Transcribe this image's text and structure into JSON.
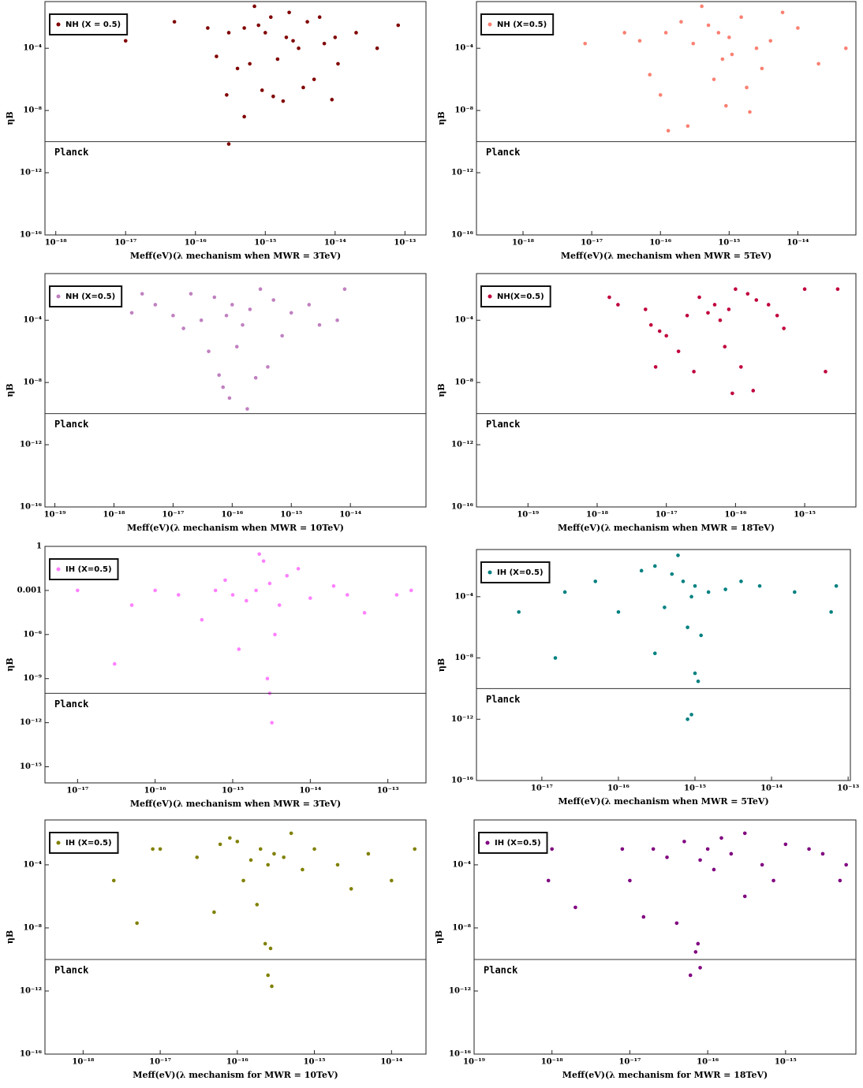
{
  "chart_data": [
    {
      "type": "scatter",
      "x_label": "Meff(eV)(λ mechanism when MWR = 3TeV)",
      "y_label": "ηB",
      "xscale": "log",
      "yscale": "log",
      "legend": "upper left",
      "xlim": [
        7e-19,
        2e-13
      ],
      "ylim": [
        1e-16,
        0.1
      ],
      "xticks": [
        {
          "value": 1e-18,
          "label": "10⁻¹⁸"
        },
        {
          "value": 1e-17,
          "label": "10⁻¹⁷"
        },
        {
          "value": 1e-16,
          "label": "10⁻¹⁶"
        },
        {
          "value": 1e-15,
          "label": "10⁻¹⁵"
        },
        {
          "value": 1e-14,
          "label": "10⁻¹⁴"
        },
        {
          "value": 1e-13,
          "label": "10⁻¹³"
        }
      ],
      "yticks": [
        {
          "value": 1e-16,
          "label": "10⁻¹⁶"
        },
        {
          "value": 1e-12,
          "label": "10⁻¹²"
        },
        {
          "value": 1e-08,
          "label": "10⁻⁸"
        },
        {
          "value": 0.0001,
          "label": "10⁻⁴"
        }
      ],
      "hline": {
        "value": 1e-10,
        "label": "Planck"
      },
      "series": [
        {
          "name": "NH (X = 0.5)",
          "color": "#800000",
          "x": [
            1e-15,
            2e-15,
            5e-16,
            3e-15,
            8e-16,
            1.5e-15,
            4e-15,
            6e-16,
            2.5e-15,
            1.2e-15,
            7e-15,
            3e-16,
            1e-14,
            2e-16,
            5e-15,
            9e-16,
            1.8e-15,
            3.5e-15,
            1.1e-14,
            4e-16,
            2e-14,
            1.5e-16,
            6e-15,
            2.2e-15,
            7e-16,
            1e-17,
            3e-18,
            5e-17,
            4e-14,
            8e-14,
            2.8e-16,
            5e-16,
            3e-16,
            1.3e-15,
            9e-15
          ],
          "values": [
            0.001,
            0.0005,
            0.002,
            0.0001,
            0.003,
            2e-05,
            0.005,
            1e-05,
            0.0003,
            0.01,
            0.0002,
            0.001,
            0.0005,
            3e-05,
            1e-06,
            2e-07,
            4e-08,
            3e-07,
            1e-05,
            5e-06,
            0.001,
            0.002,
            0.01,
            0.02,
            0.05,
            0.0003,
            0.001,
            0.005,
            0.0001,
            0.003,
            1e-07,
            4e-09,
            7e-11,
            8e-08,
            5e-08
          ]
        }
      ]
    },
    {
      "type": "scatter",
      "x_label": "Meff(eV)(λ mechanism when MWR = 5TeV)",
      "y_label": "ηB",
      "xscale": "log",
      "yscale": "log",
      "legend": "upper left",
      "xlim": [
        2.1e-19,
        7e-14
      ],
      "ylim": [
        1e-16,
        0.1
      ],
      "xticks": [
        {
          "value": 1e-18,
          "label": "10⁻¹⁸"
        },
        {
          "value": 1e-17,
          "label": "10⁻¹⁷"
        },
        {
          "value": 1e-16,
          "label": "10⁻¹⁶"
        },
        {
          "value": 1e-15,
          "label": "10⁻¹⁵"
        },
        {
          "value": 1e-14,
          "label": "10⁻¹⁴"
        }
      ],
      "yticks": [
        {
          "value": 1e-16,
          "label": "10⁻¹⁶"
        },
        {
          "value": 1e-12,
          "label": "10⁻¹²"
        },
        {
          "value": 1e-08,
          "label": "10⁻⁸"
        },
        {
          "value": 0.0001,
          "label": "10⁻⁴"
        }
      ],
      "hline": {
        "value": 1e-10,
        "label": "Planck"
      },
      "series": [
        {
          "name": "NH (X=0.5)",
          "color": "#fa8072",
          "x": [
            7e-16,
            5e-16,
            1e-15,
            3e-16,
            1.5e-15,
            2e-16,
            2.5e-15,
            8e-16,
            4e-15,
            1.2e-16,
            6e-16,
            3e-15,
            1e-14,
            5e-17,
            2e-14,
            1e-16,
            9e-16,
            1.8e-15,
            4e-16,
            6e-15,
            3e-17,
            8e-18,
            2.5e-16,
            1.1e-15,
            7e-17,
            5e-14,
            1.3e-16,
            2e-15
          ],
          "values": [
            0.001,
            0.003,
            0.0005,
            0.0002,
            0.01,
            0.005,
            0.0001,
            2e-05,
            0.0003,
            0.001,
            1e-06,
            5e-06,
            0.002,
            0.0003,
            1e-05,
            1e-07,
            2e-08,
            3e-07,
            0.05,
            0.02,
            0.001,
            0.0002,
            1e-09,
            4e-05,
            2e-06,
            0.0001,
            5e-10,
            8e-09
          ]
        }
      ]
    },
    {
      "type": "scatter",
      "x_label": "Meff(eV)(λ mechanism when MWR = 10TeV)",
      "y_label": "ηB",
      "xscale": "log",
      "yscale": "log",
      "legend": "upper left",
      "xlim": [
        6.8e-20,
        1.9e-13
      ],
      "ylim": [
        1e-16,
        0.1
      ],
      "xticks": [
        {
          "value": 1e-19,
          "label": "10⁻¹⁹"
        },
        {
          "value": 1e-18,
          "label": "10⁻¹⁸"
        },
        {
          "value": 1e-17,
          "label": "10⁻¹⁷"
        },
        {
          "value": 1e-16,
          "label": "10⁻¹⁶"
        },
        {
          "value": 1e-15,
          "label": "10⁻¹⁵"
        },
        {
          "value": 1e-14,
          "label": "10⁻¹⁴"
        }
      ],
      "yticks": [
        {
          "value": 1e-16,
          "label": "10⁻¹⁶"
        },
        {
          "value": 1e-12,
          "label": "10⁻¹²"
        },
        {
          "value": 1e-08,
          "label": "10⁻⁸"
        },
        {
          "value": 0.0001,
          "label": "10⁻⁴"
        }
      ],
      "hline": {
        "value": 1e-10,
        "label": "Planck"
      },
      "series": [
        {
          "name": "NH (X=0.5)",
          "color": "#c080c0",
          "x": [
            1e-16,
            5e-17,
            2e-16,
            3e-16,
            8e-17,
            1.5e-16,
            5e-16,
            3e-17,
            1e-15,
            2e-17,
            7e-16,
            1.2e-16,
            4e-16,
            6e-17,
            2e-15,
            1e-17,
            5e-18,
            2e-18,
            3e-15,
            6e-15,
            9e-17,
            2.5e-16,
            4e-17,
            1.5e-17,
            3e-18,
            8e-15,
            1.8e-16,
            7e-17
          ],
          "values": [
            0.001,
            0.003,
            0.0005,
            0.01,
            0.0002,
            5e-05,
            0.002,
            0.0001,
            0.0003,
            0.005,
            1e-05,
            2e-06,
            1e-07,
            3e-08,
            0.001,
            0.0002,
            0.001,
            0.0003,
            5e-05,
            0.0001,
            1e-09,
            2e-08,
            1e-06,
            3e-05,
            0.005,
            0.01,
            2e-10,
            5e-09
          ]
        }
      ]
    },
    {
      "type": "scatter",
      "x_label": "Meff(eV)(λ mechanism when MWR = 18TeV)",
      "y_label": "ηB",
      "xscale": "log",
      "yscale": "log",
      "legend": "upper left",
      "xlim": [
        1.8e-20,
        5.5e-15
      ],
      "ylim": [
        1e-16,
        0.1
      ],
      "xticks": [
        {
          "value": 1e-19,
          "label": "10⁻¹⁹"
        },
        {
          "value": 1e-18,
          "label": "10⁻¹⁸"
        },
        {
          "value": 1e-17,
          "label": "10⁻¹⁷"
        },
        {
          "value": 1e-16,
          "label": "10⁻¹⁶"
        },
        {
          "value": 1e-15,
          "label": "10⁻¹⁵"
        }
      ],
      "yticks": [
        {
          "value": 1e-16,
          "label": "10⁻¹⁶"
        },
        {
          "value": 1e-12,
          "label": "10⁻¹²"
        },
        {
          "value": 1e-08,
          "label": "10⁻⁸"
        },
        {
          "value": 0.0001,
          "label": "10⁻⁴"
        }
      ],
      "hline": {
        "value": 1e-10,
        "label": "Planck"
      },
      "series": [
        {
          "name": "NH(X=0.5)",
          "color": "#c0003c",
          "x": [
            5e-17,
            3e-17,
            8e-17,
            1e-16,
            2e-17,
            1.5e-16,
            6e-17,
            4e-17,
            2e-16,
            1e-17,
            3e-16,
            7e-17,
            5e-18,
            5e-16,
            1.2e-16,
            2.5e-17,
            9e-17,
            1e-15,
            2e-18,
            1.5e-17,
            4e-16,
            6e-18,
            3e-15,
            7e-18,
            1.8e-16,
            1.5e-18,
            2e-15,
            8e-18
          ],
          "values": [
            0.001,
            0.003,
            0.0005,
            0.01,
            0.0002,
            0.005,
            0.0001,
            0.0003,
            0.002,
            1e-05,
            0.001,
            2e-06,
            0.0005,
            3e-05,
            1e-07,
            5e-08,
            2e-09,
            0.01,
            0.001,
            1e-06,
            0.0002,
            5e-05,
            0.01,
            1e-07,
            3e-09,
            0.003,
            5e-08,
            2e-05
          ]
        }
      ]
    },
    {
      "type": "scatter",
      "x_label": "Meff(eV)(λ mechanism when MWR = 3TeV)",
      "y_label": "ηB",
      "xscale": "log",
      "yscale": "log",
      "legend": "upper left",
      "xlim": [
        3.8e-18,
        3.1e-13
      ],
      "ylim": [
        8e-17,
        1
      ],
      "xticks": [
        {
          "value": 1e-17,
          "label": "10⁻¹⁷"
        },
        {
          "value": 1e-16,
          "label": "10⁻¹⁶"
        },
        {
          "value": 1e-15,
          "label": "10⁻¹⁵"
        },
        {
          "value": 1e-14,
          "label": "10⁻¹⁴"
        },
        {
          "value": 1e-13,
          "label": "10⁻¹³"
        }
      ],
      "yticks": [
        {
          "value": 1e-15,
          "label": "10⁻¹⁵"
        },
        {
          "value": 1e-12,
          "label": "10⁻¹²"
        },
        {
          "value": 1e-09,
          "label": "10⁻⁹"
        },
        {
          "value": 1e-06,
          "label": "10⁻⁶"
        },
        0.001,
        1
      ],
      "hline": {
        "value": 1e-10,
        "label": "Planck"
      },
      "series": [
        {
          "name": "IH (X=0.5)",
          "color": "#ff80ff",
          "x": [
            2e-15,
            3e-15,
            1e-15,
            5e-15,
            1.5e-15,
            8e-16,
            4e-15,
            7e-15,
            6e-16,
            2.5e-15,
            1e-14,
            4e-16,
            2e-14,
            2e-16,
            3.5e-15,
            1e-16,
            5e-17,
            3e-14,
            2.8e-15,
            3e-15,
            3.2e-15,
            1e-17,
            1.3e-13,
            2e-13,
            3e-17,
            5e-14,
            1.2e-15,
            2.2e-15
          ],
          "values": [
            0.001,
            0.003,
            0.0005,
            0.01,
            0.0002,
            0.005,
            0.0001,
            0.03,
            0.001,
            0.1,
            0.0003,
            1e-05,
            0.002,
            0.0005,
            1e-06,
            0.001,
            0.0001,
            0.0005,
            1e-09,
            1e-10,
            1e-12,
            0.001,
            0.0005,
            0.001,
            1e-08,
            3e-05,
            1e-07,
            0.3
          ]
        }
      ]
    },
    {
      "type": "scatter",
      "x_label": "Meff(eV)(λ mechanism when MWR = 5TeV)",
      "y_label": "ηB",
      "xscale": "log",
      "yscale": "log",
      "legend": "upper left",
      "xlim": [
        1.4e-18,
        1.07e-13
      ],
      "ylim": [
        1e-16,
        0.12
      ],
      "xticks": [
        {
          "value": 1e-17,
          "label": "10⁻¹⁷"
        },
        {
          "value": 1e-16,
          "label": "10⁻¹⁶"
        },
        {
          "value": 1e-15,
          "label": "10⁻¹⁵"
        },
        {
          "value": 1e-14,
          "label": "10⁻¹⁴"
        },
        {
          "value": 1e-13,
          "label": "10⁻¹³"
        }
      ],
      "yticks": [
        {
          "value": 1e-16,
          "label": "10⁻¹⁶"
        },
        {
          "value": 1e-12,
          "label": "10⁻¹²"
        },
        {
          "value": 1e-08,
          "label": "10⁻⁸"
        },
        {
          "value": 0.0001,
          "label": "10⁻⁴"
        }
      ],
      "hline": {
        "value": 1e-10,
        "label": "Planck"
      },
      "series": [
        {
          "name": "IH (X=0.5)",
          "color": "#008080",
          "x": [
            7e-16,
            5e-16,
            1e-15,
            3e-16,
            1.5e-15,
            2e-16,
            9e-16,
            2.5e-15,
            4e-16,
            6e-16,
            4e-15,
            1e-16,
            8e-16,
            1.2e-15,
            7e-15,
            5e-17,
            2e-14,
            1e-15,
            1.1e-15,
            8e-16,
            9e-16,
            2e-17,
            4e-18,
            5e-18,
            6e-14,
            7e-14,
            1.5e-17,
            3e-16
          ],
          "values": [
            0.001,
            0.003,
            0.0005,
            0.01,
            0.0002,
            0.005,
            0.0001,
            0.0003,
            2e-05,
            0.05,
            0.001,
            1e-05,
            1e-06,
            3e-07,
            0.0005,
            0.001,
            0.0002,
            1e-09,
            3e-10,
            1e-12,
            2e-12,
            0.0002,
            0.001,
            1e-05,
            1e-05,
            0.0005,
            1e-08,
            2e-08
          ]
        }
      ]
    },
    {
      "type": "scatter",
      "x_label": "Meff(eV)(λ mechanism for MWR = 10TeV)",
      "y_label": "ηB",
      "xscale": "log",
      "yscale": "log",
      "legend": "upper left",
      "xlim": [
        3.2e-19,
        2.8e-14
      ],
      "ylim": [
        1e-16,
        0.07
      ],
      "xticks": [
        {
          "value": 1e-18,
          "label": "10⁻¹⁸"
        },
        {
          "value": 1e-17,
          "label": "10⁻¹⁷"
        },
        {
          "value": 1e-16,
          "label": "10⁻¹⁶"
        },
        {
          "value": 1e-15,
          "label": "10⁻¹⁵"
        },
        {
          "value": 1e-14,
          "label": "10⁻¹⁴"
        }
      ],
      "yticks": [
        {
          "value": 1e-16,
          "label": "10⁻¹⁶"
        },
        {
          "value": 1e-12,
          "label": "10⁻¹²"
        },
        {
          "value": 1e-08,
          "label": "10⁻⁸"
        },
        {
          "value": 0.0001,
          "label": "10⁻⁴"
        }
      ],
      "hline": {
        "value": 1e-10,
        "label": "Planck"
      },
      "series": [
        {
          "name": "IH (X=0.5)",
          "color": "#808000",
          "x": [
            2e-16,
            1e-16,
            3e-16,
            5e-16,
            1.5e-16,
            8e-17,
            2.5e-16,
            4e-16,
            6e-17,
            1e-15,
            1.2e-16,
            7e-16,
            3e-17,
            2e-15,
            1e-17,
            2.7e-16,
            2.5e-16,
            2.8e-16,
            2.3e-16,
            5e-15,
            1e-14,
            2e-14,
            5e-18,
            2.5e-18,
            8e-18,
            5e-17,
            3e-15,
            1.8e-16
          ],
          "values": [
            0.001,
            0.003,
            0.0005,
            0.01,
            0.0002,
            0.005,
            0.0001,
            0.0003,
            0.002,
            0.001,
            1e-05,
            5e-05,
            0.0003,
            0.0001,
            0.001,
            5e-10,
            1e-11,
            2e-12,
            1e-09,
            0.0005,
            1e-05,
            0.001,
            2e-08,
            1e-05,
            0.001,
            1e-07,
            3e-06,
            3e-07
          ]
        }
      ]
    },
    {
      "type": "scatter",
      "x_label": "Meff(eV)(λ mechanism for MWR = 18TeV)",
      "y_label": "ηB",
      "xscale": "log",
      "yscale": "log",
      "legend": "upper left",
      "xlim": [
        1e-19,
        8e-15
      ],
      "ylim": [
        1e-16,
        0.07
      ],
      "xticks": [
        {
          "value": 1e-19,
          "label": "10⁻¹⁹"
        },
        {
          "value": 1e-18,
          "label": "10⁻¹⁸"
        },
        {
          "value": 1e-17,
          "label": "10⁻¹⁷"
        },
        {
          "value": 1e-16,
          "label": "10⁻¹⁶"
        },
        {
          "value": 1e-15,
          "label": "10⁻¹⁵"
        }
      ],
      "yticks": [
        {
          "value": 1e-16,
          "label": "10⁻¹⁶"
        },
        {
          "value": 1e-12,
          "label": "10⁻¹²"
        },
        {
          "value": 1e-08,
          "label": "10⁻⁸"
        },
        {
          "value": 0.0001,
          "label": "10⁻⁴"
        }
      ],
      "hline": {
        "value": 1e-10,
        "label": "Planck"
      },
      "series": [
        {
          "name": "IH (X=0.5)",
          "color": "#800080",
          "x": [
            1e-16,
            5e-17,
            2e-16,
            3e-16,
            8e-17,
            1.5e-16,
            5e-16,
            3e-17,
            1e-15,
            2e-17,
            7e-16,
            1.2e-16,
            7.5e-17,
            7e-17,
            8e-17,
            6e-17,
            8e-18,
            1e-18,
            1e-17,
            3e-15,
            5e-15,
            6e-15,
            2e-18,
            3e-16,
            1.5e-17,
            4e-17,
            2e-15,
            9e-19
          ],
          "values": [
            0.001,
            0.003,
            0.0005,
            0.01,
            0.0002,
            0.005,
            0.0001,
            0.0003,
            0.002,
            0.001,
            1e-05,
            5e-05,
            1e-09,
            3e-10,
            3e-11,
            1e-11,
            0.001,
            0.001,
            1e-05,
            0.0005,
            1e-05,
            0.0001,
            2e-07,
            1e-06,
            5e-08,
            2e-08,
            0.001,
            1e-05
          ]
        }
      ]
    }
  ]
}
